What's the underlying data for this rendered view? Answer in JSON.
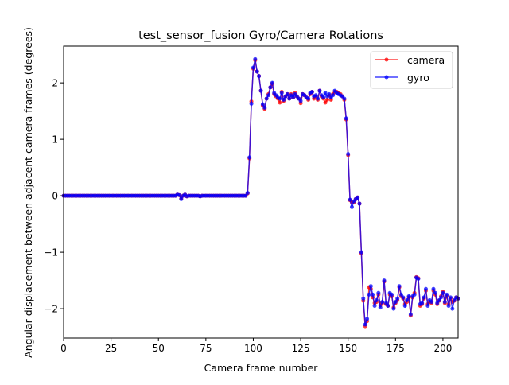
{
  "chart_data": {
    "type": "line",
    "title": "test_sensor_fusion Gyro/Camera Rotations",
    "xlabel": "Camera frame number",
    "ylabel": "Angular displacement between adjacent camera frames (degrees)",
    "xlim": [
      0,
      208
    ],
    "ylim": [
      -2.52,
      2.65
    ],
    "xticks": [
      0,
      25,
      50,
      75,
      100,
      125,
      150,
      175,
      200
    ],
    "yticks": [
      -2,
      -1,
      0,
      1,
      2
    ],
    "ytick_labels": [
      "−2",
      "−1",
      "0",
      "1",
      "2"
    ],
    "grid": false,
    "legend_position": "top-right",
    "x_start": 0,
    "x_step": 1,
    "series": [
      {
        "name": "camera",
        "color": "#ff0000",
        "marker": "circle",
        "values": [
          0,
          0,
          0,
          0,
          0,
          0,
          0,
          0,
          0,
          0,
          0,
          0,
          0,
          0,
          0,
          0,
          0,
          0,
          0,
          0,
          0,
          0,
          0,
          0,
          0,
          0,
          0,
          0,
          0,
          0,
          0,
          0,
          0,
          0,
          0,
          0,
          0,
          0,
          0,
          0,
          0,
          0,
          0,
          0,
          0,
          0,
          0,
          0,
          0,
          0,
          0,
          0,
          0,
          0,
          0,
          0,
          0,
          0,
          0,
          0,
          0.02,
          0.01,
          -0.05,
          0,
          0.02,
          -0.01,
          0,
          0,
          0,
          0,
          0,
          0,
          -0.01,
          0,
          0,
          0,
          0,
          0,
          0,
          0,
          0,
          0,
          0,
          0,
          0,
          0,
          0,
          0,
          0,
          0,
          0,
          0,
          0,
          0,
          0,
          0,
          0,
          0.04,
          0.66,
          1.67,
          2.25,
          2.4,
          2.2,
          2.12,
          1.86,
          1.6,
          1.54,
          1.72,
          1.8,
          1.92,
          1.98,
          1.8,
          1.76,
          1.72,
          1.65,
          1.84,
          1.68,
          1.76,
          1.8,
          1.72,
          1.8,
          1.74,
          1.82,
          1.76,
          1.72,
          1.64,
          1.8,
          1.78,
          1.74,
          1.7,
          1.8,
          1.84,
          1.72,
          1.76,
          1.7,
          1.86,
          1.76,
          1.72,
          1.65,
          1.7,
          1.78,
          1.7,
          1.8,
          1.84,
          1.84,
          1.82,
          1.8,
          1.76,
          1.7,
          1.35,
          0.72,
          -0.08,
          -0.12,
          -0.12,
          -0.06,
          -0.03,
          -0.14,
          -1.02,
          -1.86,
          -2.31,
          -2.22,
          -1.62,
          -1.65,
          -1.8,
          -1.9,
          -1.88,
          -1.75,
          -1.94,
          -1.9,
          -1.52,
          -1.92,
          -1.95,
          -1.75,
          -1.78,
          -1.98,
          -1.9,
          -1.85,
          -1.62,
          -1.78,
          -1.82,
          -1.92,
          -1.88,
          -1.8,
          -2.12,
          -1.8,
          -1.72,
          -1.44,
          -1.46,
          -1.95,
          -1.92,
          -1.82,
          -1.68,
          -1.92,
          -1.88,
          -1.9,
          -1.68,
          -1.75,
          -1.92,
          -1.86,
          -1.78,
          -1.7,
          -1.9,
          -1.78,
          -1.92,
          -1.82,
          -1.88,
          -1.86,
          -1.8,
          -1.82
        ]
      },
      {
        "name": "gyro",
        "color": "#0000ff",
        "marker": "circle",
        "values": [
          0,
          0,
          0,
          0,
          0,
          0,
          0,
          0,
          0,
          0,
          0,
          0,
          0,
          0,
          0,
          0,
          0,
          0,
          0,
          0,
          0,
          0,
          0,
          0,
          0,
          0,
          0,
          0,
          0,
          0,
          0,
          0,
          0,
          0,
          0,
          0,
          0,
          0,
          0,
          0,
          0,
          0,
          0,
          0,
          0,
          0,
          0,
          0,
          0,
          0,
          0,
          0,
          0,
          0,
          0,
          0,
          0,
          0,
          0,
          0,
          0.02,
          0.01,
          -0.06,
          0,
          0.02,
          -0.01,
          0,
          0,
          0,
          0,
          0,
          0,
          -0.01,
          0,
          0,
          0,
          0,
          0,
          0,
          0,
          0,
          0,
          0,
          0,
          0,
          0,
          0,
          0,
          0,
          0,
          0,
          0,
          0,
          0,
          0,
          0,
          0,
          0.05,
          0.68,
          1.63,
          2.27,
          2.42,
          2.2,
          2.12,
          1.86,
          1.62,
          1.56,
          1.72,
          1.78,
          1.92,
          2.0,
          1.82,
          1.78,
          1.74,
          1.72,
          1.82,
          1.7,
          1.76,
          1.8,
          1.72,
          1.78,
          1.74,
          1.8,
          1.76,
          1.72,
          1.68,
          1.8,
          1.78,
          1.74,
          1.72,
          1.82,
          1.84,
          1.76,
          1.78,
          1.72,
          1.86,
          1.78,
          1.74,
          1.82,
          1.76,
          1.8,
          1.74,
          1.78,
          1.86,
          1.82,
          1.8,
          1.78,
          1.76,
          1.72,
          1.37,
          0.74,
          -0.07,
          -0.2,
          -0.1,
          -0.06,
          -0.03,
          -0.14,
          -1.0,
          -1.82,
          -2.28,
          -2.18,
          -1.75,
          -1.6,
          -1.75,
          -1.95,
          -1.85,
          -1.72,
          -1.98,
          -1.88,
          -1.5,
          -1.9,
          -1.95,
          -1.72,
          -1.75,
          -2.0,
          -1.88,
          -1.82,
          -1.6,
          -1.75,
          -1.8,
          -1.95,
          -1.85,
          -1.78,
          -2.1,
          -1.78,
          -1.75,
          -1.45,
          -1.47,
          -1.92,
          -1.9,
          -1.8,
          -1.65,
          -1.95,
          -1.85,
          -1.88,
          -1.65,
          -1.72,
          -1.9,
          -1.85,
          -1.8,
          -1.72,
          -1.88,
          -1.75,
          -1.95,
          -1.8,
          -2.0,
          -1.85,
          -1.8,
          -1.82
        ]
      }
    ]
  }
}
